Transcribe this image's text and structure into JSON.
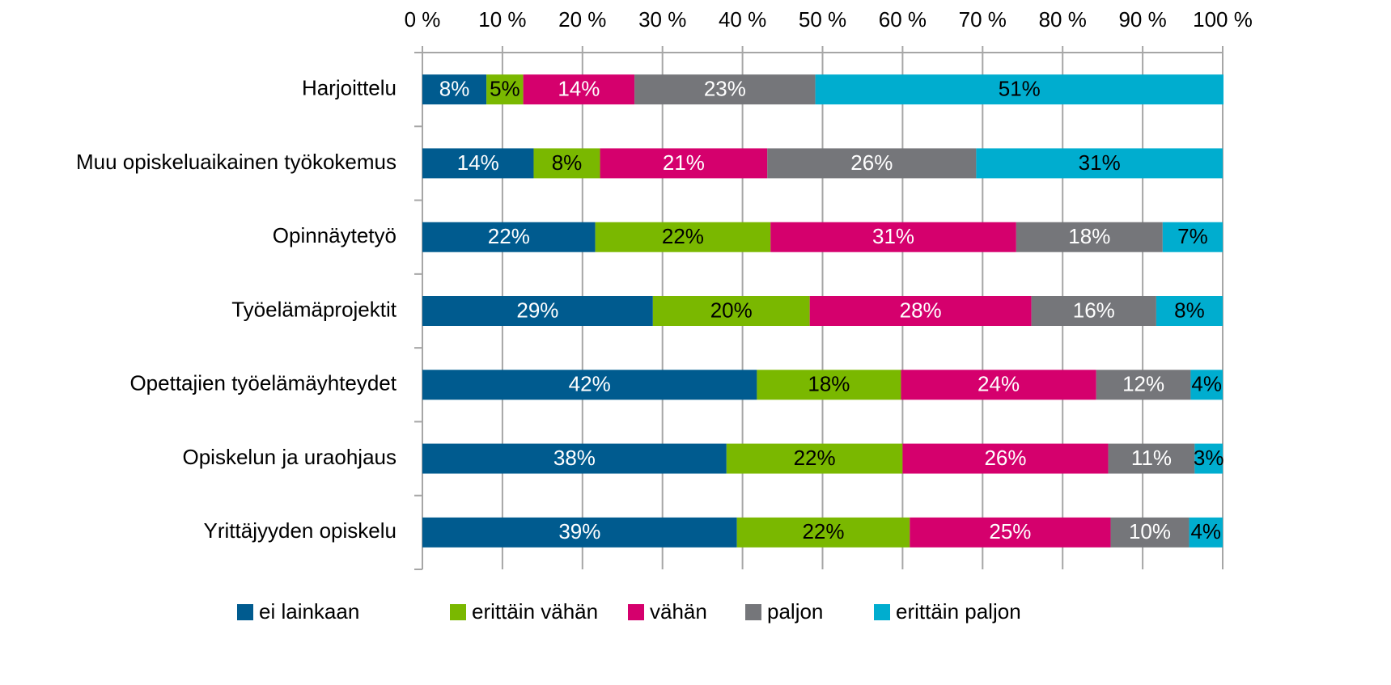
{
  "chart_data": {
    "type": "stacked_barh",
    "categories": [
      "Harjoittelu",
      "Muu opiskeluaikainen työkokemus",
      "Opinnäytetyö",
      "Työelämäprojektit",
      "Opettajien työelämäyhteydet",
      "Opiskelun ja uraohjaus",
      "Yrittäjyyden opiskelu"
    ],
    "series": [
      {
        "name": "ei lainkaan",
        "color": "#005b8f",
        "label_color": "#ffffff",
        "values": [
          8.0,
          13.9,
          21.6,
          28.8,
          41.8,
          38.0,
          39.3
        ],
        "value_labels": [
          "8%",
          "14%",
          "22%",
          "29%",
          "42%",
          "38%",
          "39%"
        ]
      },
      {
        "name": "erittäin vähän",
        "color": "#7ab800",
        "label_color": "#000000",
        "values": [
          4.6,
          8.3,
          21.9,
          19.6,
          18.0,
          22.0,
          21.6
        ],
        "value_labels": [
          "5%",
          "8%",
          "22%",
          "20%",
          "18%",
          "22%",
          "22%"
        ]
      },
      {
        "name": "vähän",
        "color": "#d5006d",
        "label_color": "#ffffff",
        "values": [
          13.9,
          20.9,
          30.7,
          27.7,
          24.4,
          25.7,
          25.1
        ],
        "value_labels": [
          "14%",
          "21%",
          "31%",
          "28%",
          "24%",
          "26%",
          "25%"
        ]
      },
      {
        "name": "paljon",
        "color": "#75767a",
        "label_color": "#ffffff",
        "values": [
          22.6,
          26.1,
          18.3,
          15.6,
          11.8,
          10.8,
          9.8
        ],
        "value_labels": [
          "23%",
          "26%",
          "18%",
          "16%",
          "12%",
          "11%",
          "10%"
        ]
      },
      {
        "name": "erittäin paljon",
        "color": "#00adcf",
        "label_color": "#000000",
        "values": [
          51.0,
          30.8,
          7.5,
          8.3,
          4.0,
          3.5,
          4.2
        ],
        "value_labels": [
          "51%",
          "31%",
          "7%",
          "8%",
          "4%",
          "3%",
          "4%"
        ]
      }
    ],
    "xlim": [
      0,
      100
    ],
    "xticks": [
      {
        "value": 0,
        "label": "0 %"
      },
      {
        "value": 10,
        "label": "10 %"
      },
      {
        "value": 20,
        "label": "20 %"
      },
      {
        "value": 30,
        "label": "30 %"
      },
      {
        "value": 40,
        "label": "40 %"
      },
      {
        "value": 50,
        "label": "50 %"
      },
      {
        "value": 60,
        "label": "60 %"
      },
      {
        "value": 70,
        "label": "70 %"
      },
      {
        "value": 80,
        "label": "80 %"
      },
      {
        "value": 90,
        "label": "90 %"
      },
      {
        "value": 100,
        "label": "100 %"
      }
    ],
    "grid": true,
    "legend": "bottom"
  }
}
